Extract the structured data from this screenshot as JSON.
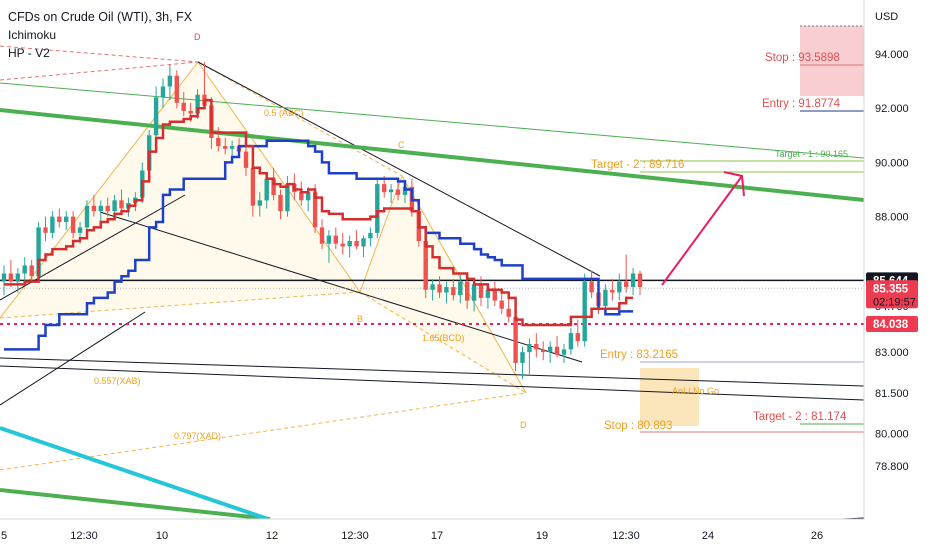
{
  "legend": {
    "title": "CFDs on Crude Oil (WTI), 3h, FX",
    "indicator1": "Ichimoku",
    "indicator2": "HP - V2"
  },
  "chart_data": {
    "type": "candlestick",
    "currency_label": "USD",
    "ylim": [
      77.6,
      95.5
    ],
    "y_ticks": [
      {
        "value": 94.0,
        "label": "94.000"
      },
      {
        "value": 92.0,
        "label": "92.000"
      },
      {
        "value": 90.0,
        "label": "90.000"
      },
      {
        "value": 88.0,
        "label": "88.000"
      },
      {
        "value": 83.0,
        "label": "83.000"
      },
      {
        "value": 81.5,
        "label": "81.500"
      },
      {
        "value": 80.0,
        "label": "80.000"
      },
      {
        "value": 78.8,
        "label": "78.800"
      }
    ],
    "hidden_tick": {
      "value": 84.7,
      "label": "84.700"
    },
    "x_ticks": [
      "5",
      "12:30",
      "10",
      "12",
      "12:30",
      "17",
      "19",
      "12:30",
      "24",
      "26"
    ],
    "price_badges": [
      {
        "value": 85.644,
        "label": "85.644",
        "style": "black"
      },
      {
        "value": 85.355,
        "label": "85.355",
        "sub": "02:19:57",
        "style": "red"
      },
      {
        "value": 84.038,
        "label": "84.038",
        "style": "red"
      }
    ],
    "levels": {
      "stop_top": "Stop : 93.5898",
      "entry_top": "Entry : 91.8774",
      "target1_top": "Target - 1 : 90.165",
      "target2_top": "Target - 2 : 89.716",
      "entry_bottom": "Entry : 83.2165",
      "stop_bottom": "Stop : 80.893",
      "target2_bottom": "Target - 2 : 81.174",
      "aoi": "AoI / No Go"
    },
    "harmonic_labels": {
      "D_top": "D",
      "C": "C",
      "B": "B",
      "D_bottom": "D",
      "ratio_abc": "0.5 (ABC)",
      "ratio_xab": "0.557(XAB)",
      "ratio_xad": "0.797(XAD)",
      "ratio_mid": "1.65(BCD)"
    },
    "candles": [
      {
        "o": 85.6,
        "h": 86.2,
        "l": 85.1,
        "c": 85.9
      },
      {
        "o": 85.9,
        "h": 86.4,
        "l": 85.4,
        "c": 85.6
      },
      {
        "o": 85.6,
        "h": 86.1,
        "l": 85.2,
        "c": 85.9
      },
      {
        "o": 85.9,
        "h": 86.5,
        "l": 85.5,
        "c": 86.2
      },
      {
        "o": 86.2,
        "h": 86.4,
        "l": 85.6,
        "c": 85.8
      },
      {
        "o": 85.8,
        "h": 87.8,
        "l": 85.6,
        "c": 87.6
      },
      {
        "o": 87.6,
        "h": 88.0,
        "l": 87.1,
        "c": 87.4
      },
      {
        "o": 87.4,
        "h": 88.2,
        "l": 87.2,
        "c": 88.0
      },
      {
        "o": 88.0,
        "h": 88.3,
        "l": 87.6,
        "c": 87.8
      },
      {
        "o": 87.8,
        "h": 88.2,
        "l": 87.5,
        "c": 88.0
      },
      {
        "o": 88.0,
        "h": 88.2,
        "l": 87.2,
        "c": 87.4
      },
      {
        "o": 87.4,
        "h": 87.8,
        "l": 87.0,
        "c": 87.6
      },
      {
        "o": 87.6,
        "h": 88.6,
        "l": 87.4,
        "c": 88.4
      },
      {
        "o": 88.4,
        "h": 88.8,
        "l": 88.0,
        "c": 88.2
      },
      {
        "o": 88.2,
        "h": 88.6,
        "l": 87.8,
        "c": 88.4
      },
      {
        "o": 88.4,
        "h": 88.7,
        "l": 88.0,
        "c": 88.2
      },
      {
        "o": 88.2,
        "h": 88.8,
        "l": 87.9,
        "c": 88.6
      },
      {
        "o": 88.6,
        "h": 89.0,
        "l": 88.1,
        "c": 88.3
      },
      {
        "o": 88.3,
        "h": 88.7,
        "l": 88.0,
        "c": 88.5
      },
      {
        "o": 88.5,
        "h": 88.9,
        "l": 88.2,
        "c": 88.7
      },
      {
        "o": 88.7,
        "h": 90.0,
        "l": 88.5,
        "c": 89.7
      },
      {
        "o": 89.7,
        "h": 91.2,
        "l": 89.5,
        "c": 91.0
      },
      {
        "o": 91.0,
        "h": 92.8,
        "l": 90.8,
        "c": 92.4
      },
      {
        "o": 92.4,
        "h": 93.1,
        "l": 92.0,
        "c": 92.8
      },
      {
        "o": 92.8,
        "h": 93.6,
        "l": 92.3,
        "c": 93.2
      },
      {
        "o": 93.2,
        "h": 93.4,
        "l": 92.0,
        "c": 92.2
      },
      {
        "o": 92.2,
        "h": 92.6,
        "l": 91.7,
        "c": 91.9
      },
      {
        "o": 91.9,
        "h": 92.2,
        "l": 91.5,
        "c": 91.8
      },
      {
        "o": 91.8,
        "h": 92.7,
        "l": 91.6,
        "c": 92.5
      },
      {
        "o": 92.5,
        "h": 93.7,
        "l": 92.0,
        "c": 92.1
      },
      {
        "o": 92.1,
        "h": 92.4,
        "l": 90.5,
        "c": 90.9
      },
      {
        "o": 90.9,
        "h": 91.3,
        "l": 90.4,
        "c": 90.6
      },
      {
        "o": 90.6,
        "h": 90.9,
        "l": 90.3,
        "c": 90.5
      },
      {
        "o": 90.5,
        "h": 90.8,
        "l": 90.2,
        "c": 90.6
      },
      {
        "o": 90.6,
        "h": 90.9,
        "l": 90.3,
        "c": 90.4
      },
      {
        "o": 90.4,
        "h": 90.6,
        "l": 89.5,
        "c": 89.8
      },
      {
        "o": 89.8,
        "h": 90.0,
        "l": 88.0,
        "c": 88.4
      },
      {
        "o": 88.4,
        "h": 88.9,
        "l": 88.0,
        "c": 88.6
      },
      {
        "o": 88.6,
        "h": 89.6,
        "l": 88.3,
        "c": 89.4
      },
      {
        "o": 89.4,
        "h": 89.8,
        "l": 88.6,
        "c": 88.8
      },
      {
        "o": 88.8,
        "h": 89.0,
        "l": 87.9,
        "c": 88.2
      },
      {
        "o": 88.2,
        "h": 89.5,
        "l": 88.0,
        "c": 89.2
      },
      {
        "o": 89.2,
        "h": 89.6,
        "l": 88.6,
        "c": 88.9
      },
      {
        "o": 88.9,
        "h": 89.3,
        "l": 88.4,
        "c": 88.6
      },
      {
        "o": 88.6,
        "h": 89.1,
        "l": 88.2,
        "c": 88.9
      },
      {
        "o": 88.9,
        "h": 89.2,
        "l": 87.4,
        "c": 87.6
      },
      {
        "o": 87.6,
        "h": 87.9,
        "l": 86.8,
        "c": 87.0
      },
      {
        "o": 87.0,
        "h": 87.5,
        "l": 86.3,
        "c": 87.3
      },
      {
        "o": 87.3,
        "h": 87.6,
        "l": 86.8,
        "c": 87.0
      },
      {
        "o": 87.0,
        "h": 87.4,
        "l": 86.6,
        "c": 86.9
      },
      {
        "o": 86.9,
        "h": 87.3,
        "l": 86.5,
        "c": 87.1
      },
      {
        "o": 87.1,
        "h": 87.5,
        "l": 86.8,
        "c": 86.9
      },
      {
        "o": 86.9,
        "h": 87.3,
        "l": 86.5,
        "c": 87.2
      },
      {
        "o": 87.2,
        "h": 87.6,
        "l": 86.9,
        "c": 87.4
      },
      {
        "o": 87.4,
        "h": 89.4,
        "l": 87.2,
        "c": 89.2
      },
      {
        "o": 89.2,
        "h": 89.5,
        "l": 88.7,
        "c": 88.9
      },
      {
        "o": 88.9,
        "h": 89.2,
        "l": 88.5,
        "c": 89.0
      },
      {
        "o": 89.0,
        "h": 89.4,
        "l": 88.6,
        "c": 88.8
      },
      {
        "o": 88.8,
        "h": 89.3,
        "l": 88.5,
        "c": 89.1
      },
      {
        "o": 89.1,
        "h": 89.4,
        "l": 88.0,
        "c": 88.2
      },
      {
        "o": 88.2,
        "h": 88.4,
        "l": 86.9,
        "c": 87.1
      },
      {
        "o": 87.1,
        "h": 87.4,
        "l": 85.0,
        "c": 85.3
      },
      {
        "o": 85.3,
        "h": 85.7,
        "l": 84.9,
        "c": 85.5
      },
      {
        "o": 85.5,
        "h": 85.8,
        "l": 85.0,
        "c": 85.2
      },
      {
        "o": 85.2,
        "h": 85.6,
        "l": 84.8,
        "c": 85.4
      },
      {
        "o": 85.4,
        "h": 85.7,
        "l": 84.9,
        "c": 85.1
      },
      {
        "o": 85.1,
        "h": 85.9,
        "l": 84.8,
        "c": 85.6
      },
      {
        "o": 85.6,
        "h": 85.8,
        "l": 84.6,
        "c": 84.9
      },
      {
        "o": 84.9,
        "h": 85.7,
        "l": 84.5,
        "c": 85.5
      },
      {
        "o": 85.5,
        "h": 85.8,
        "l": 84.7,
        "c": 85.0
      },
      {
        "o": 85.0,
        "h": 85.5,
        "l": 84.6,
        "c": 85.3
      },
      {
        "o": 85.3,
        "h": 85.6,
        "l": 84.7,
        "c": 84.9
      },
      {
        "o": 84.9,
        "h": 85.2,
        "l": 84.4,
        "c": 84.6
      },
      {
        "o": 84.6,
        "h": 85.0,
        "l": 84.1,
        "c": 84.3
      },
      {
        "o": 84.3,
        "h": 84.5,
        "l": 82.3,
        "c": 82.6
      },
      {
        "o": 82.6,
        "h": 83.2,
        "l": 82.0,
        "c": 83.0
      },
      {
        "o": 83.0,
        "h": 83.5,
        "l": 82.2,
        "c": 83.3
      },
      {
        "o": 83.3,
        "h": 83.7,
        "l": 82.8,
        "c": 83.1
      },
      {
        "o": 83.1,
        "h": 83.4,
        "l": 82.7,
        "c": 83.0
      },
      {
        "o": 83.0,
        "h": 83.4,
        "l": 82.6,
        "c": 83.2
      },
      {
        "o": 83.2,
        "h": 83.6,
        "l": 82.8,
        "c": 82.9
      },
      {
        "o": 82.9,
        "h": 83.3,
        "l": 82.6,
        "c": 83.1
      },
      {
        "o": 83.1,
        "h": 83.9,
        "l": 82.9,
        "c": 83.7
      },
      {
        "o": 83.7,
        "h": 84.2,
        "l": 83.2,
        "c": 83.4
      },
      {
        "o": 83.4,
        "h": 85.9,
        "l": 83.2,
        "c": 85.6
      },
      {
        "o": 85.6,
        "h": 86.0,
        "l": 85.0,
        "c": 85.2
      },
      {
        "o": 85.2,
        "h": 85.6,
        "l": 84.4,
        "c": 84.7
      },
      {
        "o": 84.7,
        "h": 85.5,
        "l": 84.4,
        "c": 85.3
      },
      {
        "o": 85.3,
        "h": 85.7,
        "l": 84.9,
        "c": 85.2
      },
      {
        "o": 85.2,
        "h": 85.9,
        "l": 84.9,
        "c": 85.6
      },
      {
        "o": 85.6,
        "h": 86.6,
        "l": 85.2,
        "c": 85.4
      },
      {
        "o": 85.4,
        "h": 86.1,
        "l": 85.1,
        "c": 85.9
      },
      {
        "o": 85.9,
        "h": 86.0,
        "l": 85.1,
        "c": 85.4
      }
    ],
    "kijun_blue": [
      83.1,
      83.1,
      83.1,
      83.1,
      83.1,
      83.6,
      84.0,
      84.0,
      84.4,
      84.4,
      84.4,
      84.4,
      84.8,
      85.0,
      85.0,
      85.2,
      85.6,
      85.8,
      86.0,
      86.4,
      86.4,
      87.6,
      87.8,
      88.8,
      89.0,
      89.0,
      89.4,
      89.4,
      89.4,
      89.4,
      89.4,
      89.4,
      90.0,
      90.2,
      90.6,
      90.6,
      90.6,
      90.6,
      90.8,
      90.8,
      90.8,
      90.8,
      90.8,
      90.8,
      90.6,
      90.4,
      90.0,
      89.6,
      89.6,
      89.6,
      89.6,
      89.4,
      89.4,
      89.4,
      89.4,
      89.4,
      89.4,
      89.3,
      89.0,
      88.6,
      87.6,
      87.4,
      87.4,
      87.2,
      87.2,
      87.2,
      87.0,
      87.0,
      86.8,
      86.6,
      86.5,
      86.4,
      86.2,
      86.2,
      86.2,
      85.7,
      85.7,
      85.7,
      85.7,
      85.7,
      85.7,
      85.7,
      85.7,
      85.7,
      85.7,
      85.7,
      84.6,
      84.4,
      84.4,
      84.5,
      84.5,
      84.5
    ],
    "tenkan_red": [
      85.5,
      85.5,
      85.5,
      85.6,
      85.6,
      86.4,
      86.6,
      86.8,
      86.8,
      86.9,
      87.1,
      87.2,
      87.5,
      87.6,
      87.8,
      87.9,
      88.1,
      88.2,
      88.4,
      88.6,
      89.3,
      90.4,
      90.9,
      91.4,
      91.5,
      91.5,
      91.6,
      91.7,
      92.0,
      92.3,
      91.1,
      91.1,
      91.1,
      91.1,
      91.1,
      90.6,
      89.8,
      89.6,
      89.4,
      89.2,
      89.1,
      89.2,
      89.0,
      88.9,
      89.0,
      88.7,
      88.2,
      88.1,
      88.1,
      87.9,
      87.9,
      87.9,
      87.9,
      88.0,
      88.2,
      88.3,
      88.3,
      88.3,
      88.3,
      88.2,
      87.6,
      86.9,
      86.5,
      86.1,
      86.1,
      85.9,
      85.9,
      85.7,
      85.5,
      85.5,
      85.3,
      85.3,
      85.2,
      85.0,
      84.2,
      84.0,
      84.0,
      84.0,
      84.0,
      84.0,
      84.0,
      84.0,
      84.3,
      84.3,
      84.3,
      84.6,
      84.6,
      84.6,
      84.6,
      84.8,
      85.0,
      85.0
    ]
  }
}
